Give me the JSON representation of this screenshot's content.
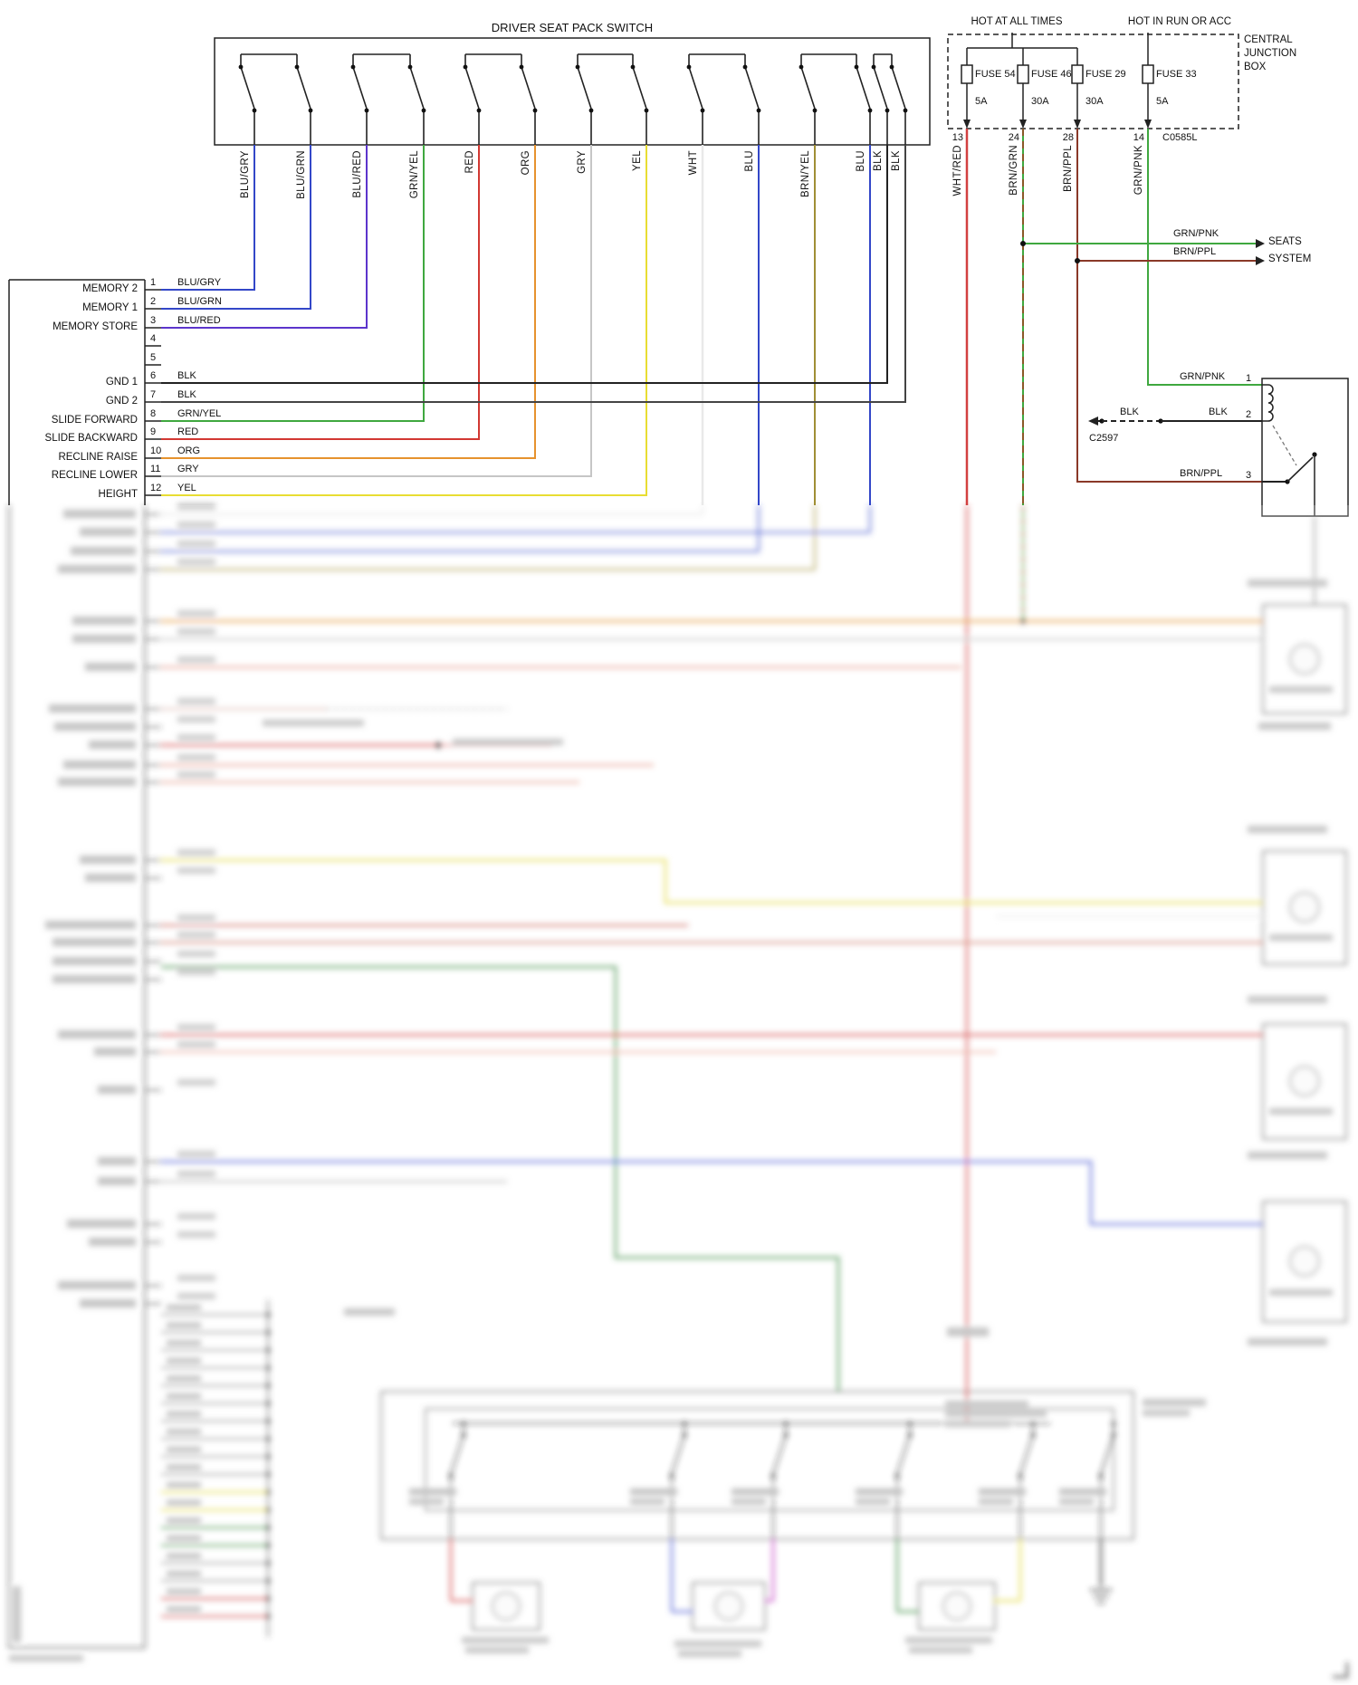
{
  "diagram": {
    "title": "DRIVER SEAT PACK SWITCH",
    "switch_wires": [
      "BLU/GRY",
      "BLU/GRN",
      "BLU/RED",
      "GRN/YEL",
      "RED",
      "ORG",
      "GRY",
      "YEL",
      "WHT",
      "BLU",
      "BRN/YEL",
      "BLU",
      "BLK",
      "BLK"
    ],
    "connector_left": {
      "pins": [
        {
          "pin": "1",
          "function": "MEMORY 2",
          "wire": "BLU/GRY"
        },
        {
          "pin": "2",
          "function": "MEMORY 1",
          "wire": "BLU/GRN"
        },
        {
          "pin": "3",
          "function": "MEMORY STORE",
          "wire": "BLU/RED"
        },
        {
          "pin": "4",
          "function": "",
          "wire": ""
        },
        {
          "pin": "5",
          "function": "",
          "wire": ""
        },
        {
          "pin": "6",
          "function": "GND 1",
          "wire": "BLK"
        },
        {
          "pin": "7",
          "function": "GND 2",
          "wire": "BLK"
        },
        {
          "pin": "8",
          "function": "SLIDE FORWARD",
          "wire": "GRN/YEL"
        },
        {
          "pin": "9",
          "function": "SLIDE BACKWARD",
          "wire": "RED"
        },
        {
          "pin": "10",
          "function": "RECLINE RAISE",
          "wire": "ORG"
        },
        {
          "pin": "11",
          "function": "RECLINE LOWER",
          "wire": "GRY"
        },
        {
          "pin": "12",
          "function": "HEIGHT",
          "wire": "YEL"
        }
      ]
    },
    "power": {
      "hot_at_all_times": "HOT AT ALL TIMES",
      "hot_in_run": "HOT IN RUN OR ACC",
      "junction_box": [
        "CENTRAL",
        "JUNCTION",
        "BOX"
      ],
      "connector": "C0585L",
      "fuses": [
        {
          "name": "FUSE 54",
          "amps": "5A",
          "pin": "13",
          "wire": "WHT/RED"
        },
        {
          "name": "FUSE 46",
          "amps": "30A",
          "pin": "24",
          "wire": "BRN/GRN"
        },
        {
          "name": "FUSE 29",
          "amps": "30A",
          "pin": "28",
          "wire": "BRN/PPL"
        },
        {
          "name": "FUSE 33",
          "amps": "5A",
          "pin": "14",
          "wire": "GRN/PNK"
        }
      ]
    },
    "seats_system": {
      "line1_wire": "GRN/PNK",
      "line2_wire": "BRN/PPL",
      "label1": "SEATS",
      "label2": "SYSTEM"
    },
    "relay": {
      "pin1_wire": "GRN/PNK",
      "pin1": "1",
      "pin2_wire_left": "BLK",
      "pin2_wire_right": "BLK",
      "pin2": "2",
      "pin2_connector": "C2597",
      "pin3_wire": "BRN/PPL",
      "pin3": "3"
    },
    "wire_colors": {
      "BLU": "#3347c8",
      "BLU_RED": "#5c35cc",
      "GRN_YEL": "#3fa83f",
      "RED": "#d23832",
      "ORG": "#e6922e",
      "GRY": "#c6c6c6",
      "YEL": "#e8dd33",
      "WHT": "#e9e9e9",
      "BRN_YEL": "#a08f35",
      "BLK": "#222222",
      "WHT_RED": "#d24040",
      "BRN_GRN": "#8a5828",
      "BRN_PPL": "#8a3928",
      "GRN_PNK": "#3fa83f"
    }
  }
}
